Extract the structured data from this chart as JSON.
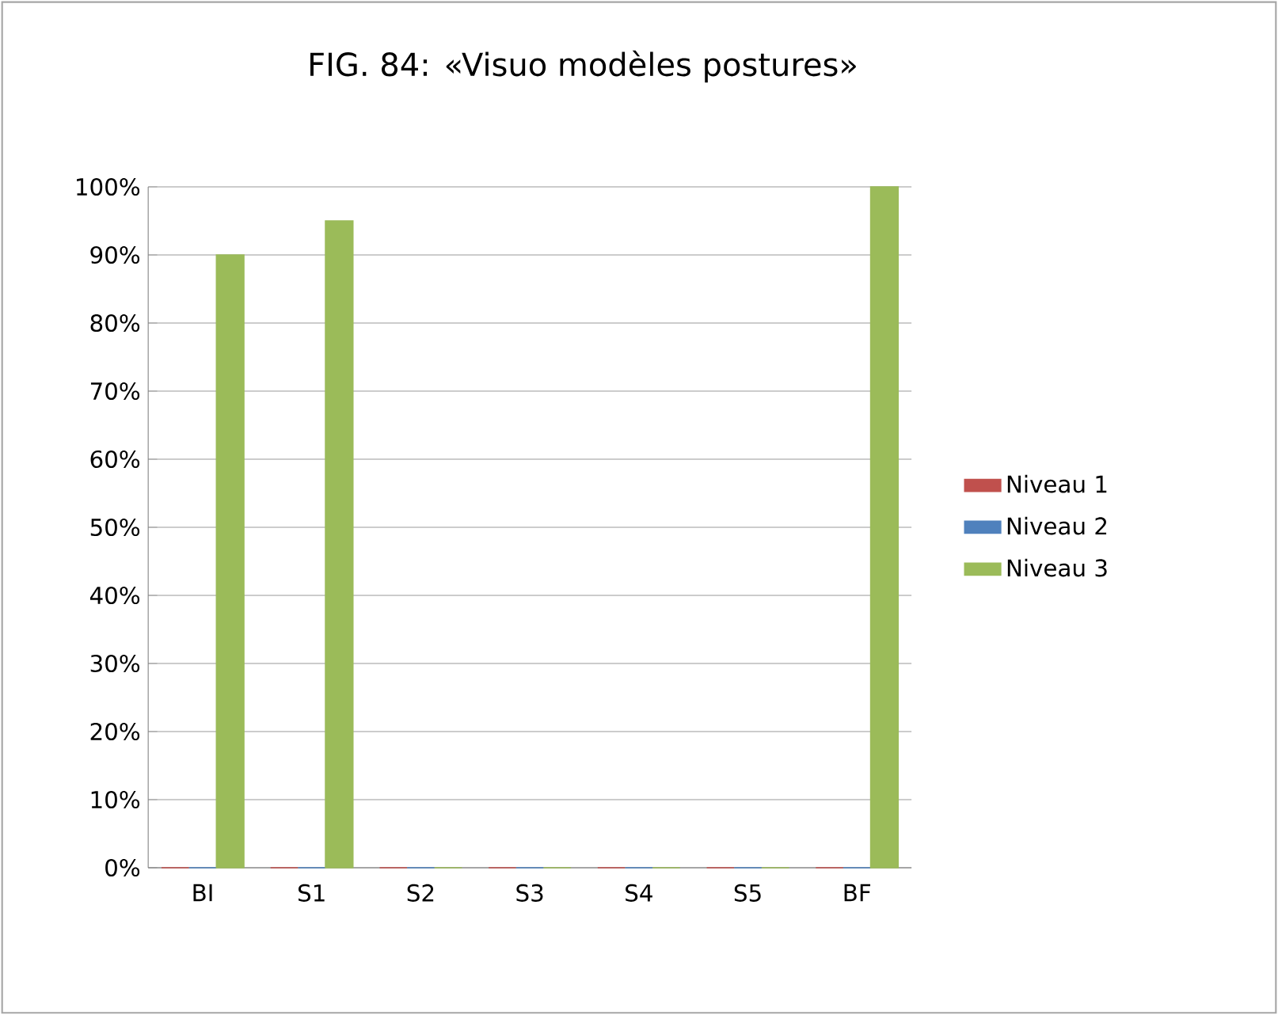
{
  "chart_data": {
    "type": "bar",
    "title": "FIG. 84: «Visuo modèles postures»",
    "categories": [
      "BI",
      "S1",
      "S2",
      "S3",
      "S4",
      "S5",
      "BF"
    ],
    "series": [
      {
        "name": "Niveau 1",
        "color": "#c0504d",
        "values": [
          0,
          0,
          0,
          0,
          0,
          0,
          0
        ]
      },
      {
        "name": "Niveau 2",
        "color": "#4f81bd",
        "values": [
          0,
          0,
          0,
          0,
          0,
          0,
          0
        ]
      },
      {
        "name": "Niveau 3",
        "color": "#9bbb59",
        "values": [
          90,
          95,
          0,
          0,
          0,
          0,
          100
        ]
      }
    ],
    "ylim": [
      0,
      100
    ],
    "yticks": [
      {
        "value": 0,
        "label": "0%"
      },
      {
        "value": 10,
        "label": "10%"
      },
      {
        "value": 20,
        "label": "20%"
      },
      {
        "value": 30,
        "label": "30%"
      },
      {
        "value": 40,
        "label": "40%"
      },
      {
        "value": 50,
        "label": "50%"
      },
      {
        "value": 60,
        "label": "60%"
      },
      {
        "value": 70,
        "label": "70%"
      },
      {
        "value": 80,
        "label": "80%"
      },
      {
        "value": 90,
        "label": "90%"
      },
      {
        "value": 100,
        "label": "100%"
      }
    ],
    "grid": "y",
    "legend": "right"
  }
}
